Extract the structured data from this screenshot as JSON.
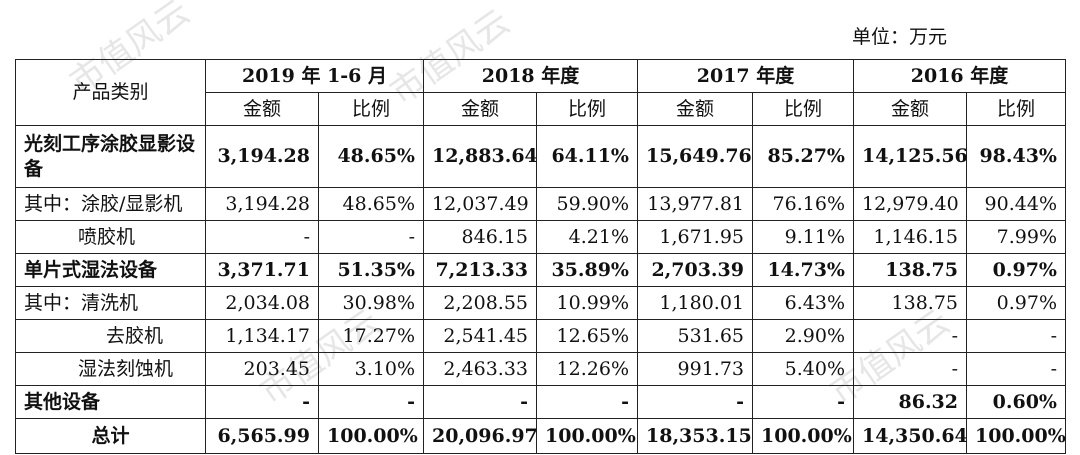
{
  "unit_label": "单位：万元",
  "header": {
    "category": "产品类别",
    "periods": [
      "2019 年 1-6 月",
      "2018 年度",
      "2017 年度",
      "2016 年度"
    ],
    "amount": "金额",
    "ratio": "比例"
  },
  "rows": [
    {
      "label": "光刻工序涂胶显影设备",
      "indent": 0,
      "bold": true,
      "cells": [
        "3,194.28",
        "48.65%",
        "12,883.64",
        "64.11%",
        "15,649.76",
        "85.27%",
        "14,125.56",
        "98.43%"
      ]
    },
    {
      "label": "其中：涂胶/显影机",
      "indent": 0,
      "bold": false,
      "cells": [
        "3,194.28",
        "48.65%",
        "12,037.49",
        "59.90%",
        "13,977.81",
        "76.16%",
        "12,979.40",
        "90.44%"
      ]
    },
    {
      "label": "喷胶机",
      "indent": 1,
      "bold": false,
      "cells": [
        "-",
        "-",
        "846.15",
        "4.21%",
        "1,671.95",
        "9.11%",
        "1,146.15",
        "7.99%"
      ]
    },
    {
      "label": "单片式湿法设备",
      "indent": 0,
      "bold": true,
      "cells": [
        "3,371.71",
        "51.35%",
        "7,213.33",
        "35.89%",
        "2,703.39",
        "14.73%",
        "138.75",
        "0.97%"
      ]
    },
    {
      "label": "其中：清洗机",
      "indent": 0,
      "bold": false,
      "cells": [
        "2,034.08",
        "30.98%",
        "2,208.55",
        "10.99%",
        "1,180.01",
        "6.43%",
        "138.75",
        "0.97%"
      ]
    },
    {
      "label": "去胶机",
      "indent": 2,
      "bold": false,
      "cells": [
        "1,134.17",
        "17.27%",
        "2,541.45",
        "12.65%",
        "531.65",
        "2.90%",
        "-",
        "-"
      ]
    },
    {
      "label": "湿法刻蚀机",
      "indent": 1,
      "bold": false,
      "cells": [
        "203.45",
        "3.10%",
        "2,463.33",
        "12.26%",
        "991.73",
        "5.40%",
        "-",
        "-"
      ]
    },
    {
      "label": "其他设备",
      "indent": 0,
      "bold": true,
      "cells": [
        "-",
        "-",
        "-",
        "-",
        "-",
        "-",
        "86.32",
        "0.60%"
      ]
    },
    {
      "label": "总计",
      "indent": 0,
      "bold": true,
      "total": true,
      "cells": [
        "6,565.99",
        "100.00%",
        "20,096.97",
        "100.00%",
        "18,353.15",
        "100.00%",
        "14,350.64",
        "100.00%"
      ]
    }
  ],
  "watermark_text": "市值风云"
}
